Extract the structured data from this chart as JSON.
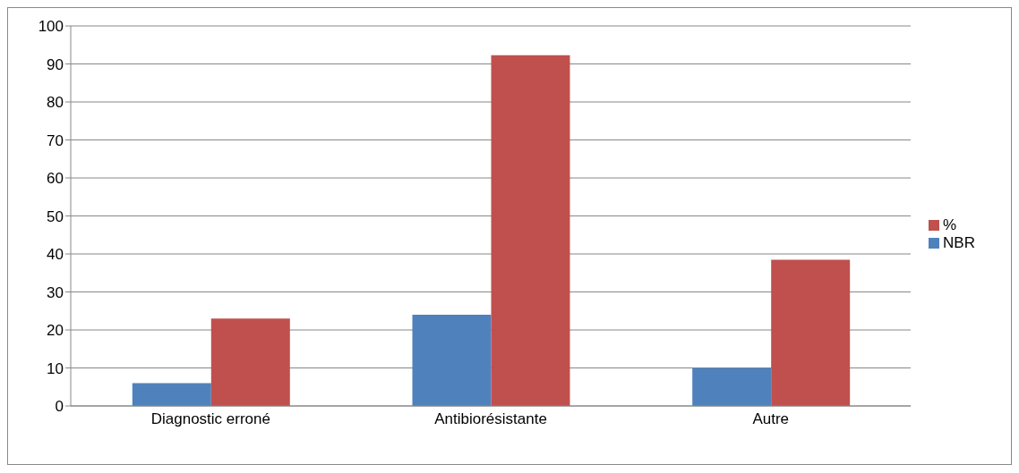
{
  "chart_data": {
    "type": "bar",
    "categories": [
      "Diagnostic erroné",
      "Antibiorésistante",
      "Autre"
    ],
    "series": [
      {
        "name": "NBR",
        "color": "#4f81bd",
        "values": [
          6,
          24,
          10
        ]
      },
      {
        "name": "%",
        "color": "#c0504d",
        "values": [
          23,
          92.3,
          38.5
        ]
      }
    ],
    "ylim": [
      0,
      100
    ],
    "yticks": [
      0,
      10,
      20,
      30,
      40,
      50,
      60,
      70,
      80,
      90,
      100
    ],
    "grid": "y",
    "legend": "right"
  }
}
